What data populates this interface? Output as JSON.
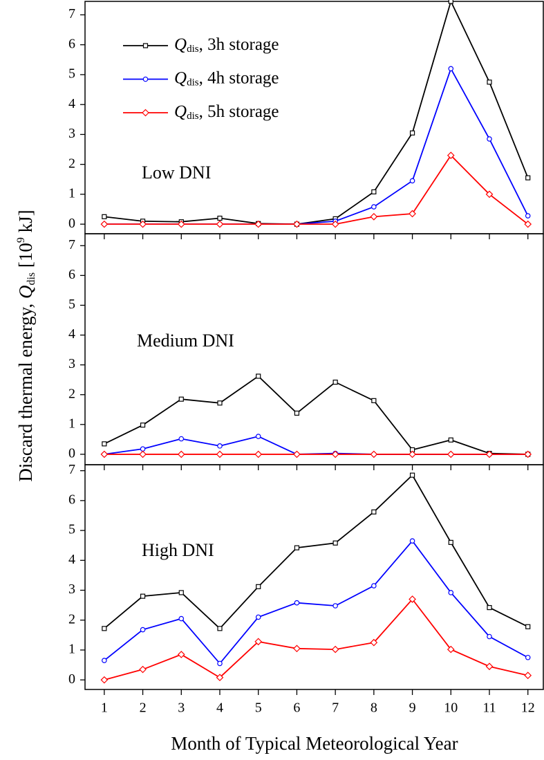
{
  "chart_data": [
    {
      "type": "line",
      "annotation": "Low DNI",
      "x": [
        1,
        2,
        3,
        4,
        5,
        6,
        7,
        8,
        9,
        10,
        11,
        12
      ],
      "xlim": [
        0.5,
        12.4
      ],
      "ylim": [
        -0.32,
        7.45
      ],
      "yticks": [
        0,
        1,
        2,
        3,
        4,
        5,
        6,
        7
      ],
      "legend": "upper left",
      "series": [
        {
          "name": "Qdis, 3h storage",
          "color": "#000000",
          "marker": "square",
          "values": [
            0.25,
            0.1,
            0.08,
            0.2,
            0.02,
            0,
            0.18,
            1.08,
            3.05,
            7.45,
            4.75,
            1.55
          ]
        },
        {
          "name": "Qdis, 4h storage",
          "color": "#0000ff",
          "marker": "circle",
          "values": [
            0,
            0,
            0,
            0,
            0,
            0,
            0.1,
            0.58,
            1.45,
            5.2,
            2.85,
            0.28
          ]
        },
        {
          "name": "Qdis, 5h storage",
          "color": "#ff0000",
          "marker": "diamond",
          "values": [
            0,
            0,
            0,
            0,
            0,
            0,
            0,
            0.25,
            0.35,
            2.3,
            1.0,
            0
          ]
        }
      ]
    },
    {
      "type": "line",
      "annotation": "Medium DNI",
      "x": [
        1,
        2,
        3,
        4,
        5,
        6,
        7,
        8,
        9,
        10,
        11,
        12
      ],
      "xlim": [
        0.5,
        12.4
      ],
      "ylim": [
        -0.35,
        7.4
      ],
      "yticks": [
        0,
        1,
        2,
        3,
        4,
        5,
        6,
        7
      ],
      "series": [
        {
          "color": "#000000",
          "marker": "square",
          "values": [
            0.35,
            0.98,
            1.85,
            1.72,
            2.62,
            1.38,
            2.42,
            1.8,
            0.15,
            0.48,
            0.03,
            0
          ]
        },
        {
          "color": "#0000ff",
          "marker": "circle",
          "values": [
            0,
            0.18,
            0.52,
            0.28,
            0.6,
            0,
            0.03,
            0,
            0,
            0,
            0,
            0
          ]
        },
        {
          "color": "#ff0000",
          "marker": "diamond",
          "values": [
            0,
            0,
            0,
            0,
            0,
            0,
            0,
            0,
            0,
            0,
            0,
            0
          ]
        }
      ]
    },
    {
      "type": "line",
      "annotation": "High DNI",
      "x": [
        1,
        2,
        3,
        4,
        5,
        6,
        7,
        8,
        9,
        10,
        11,
        12
      ],
      "xlim": [
        0.5,
        12.4
      ],
      "ylim": [
        -0.32,
        7.2
      ],
      "yticks": [
        0,
        1,
        2,
        3,
        4,
        5,
        6,
        7
      ],
      "xticks": [
        1,
        2,
        3,
        4,
        5,
        6,
        7,
        8,
        9,
        10,
        11,
        12
      ],
      "x_label": "Month of Typical Meteorological Year",
      "y_label": [
        "Discard thermal energy, ",
        "Q",
        "dis",
        " [10",
        "9",
        " kJ]"
      ],
      "series": [
        {
          "color": "#000000",
          "marker": "square",
          "values": [
            1.72,
            2.8,
            2.92,
            1.72,
            3.12,
            4.42,
            4.58,
            5.62,
            6.85,
            4.6,
            2.42,
            1.78
          ]
        },
        {
          "color": "#0000ff",
          "marker": "circle",
          "values": [
            0.65,
            1.68,
            2.05,
            0.55,
            2.1,
            2.58,
            2.48,
            3.15,
            4.65,
            2.92,
            1.45,
            0.75
          ]
        },
        {
          "color": "#ff0000",
          "marker": "diamond",
          "values": [
            0,
            0.35,
            0.85,
            0.08,
            1.28,
            1.05,
            1.02,
            1.25,
            2.7,
            1.02,
            0.45,
            0.15
          ]
        }
      ]
    }
  ]
}
